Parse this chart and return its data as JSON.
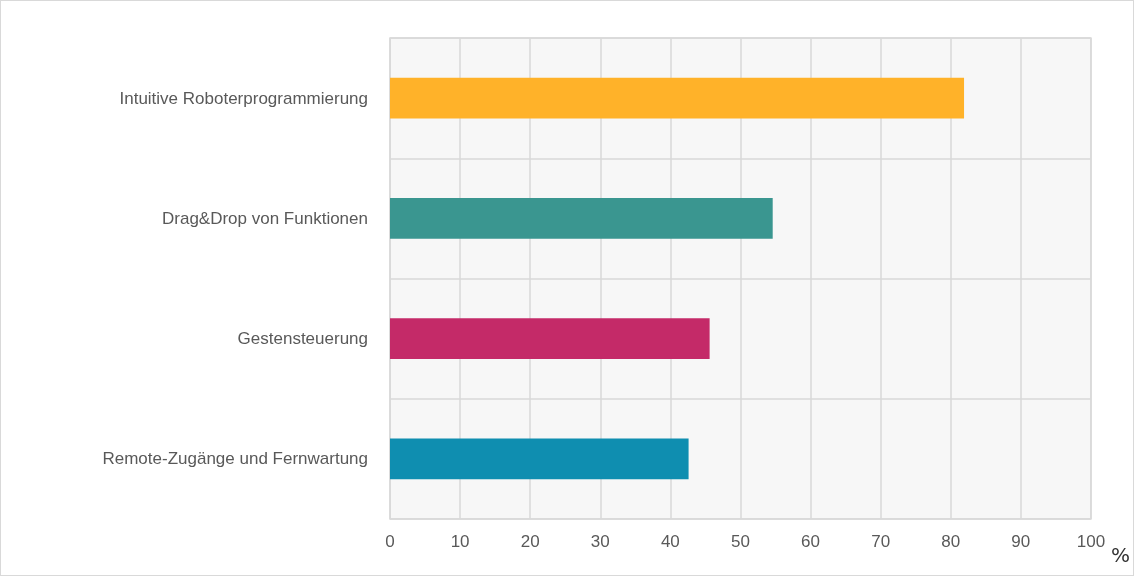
{
  "chart_data": {
    "type": "bar",
    "orientation": "horizontal",
    "xlabel": "%",
    "categories": [
      "Intuitive Roboterprogrammierung",
      "Drag&Drop von Funktionen",
      "Gestensteuerung",
      "Remote-Zugänge und Fernwartung"
    ],
    "values": [
      81.9,
      54.6,
      45.6,
      42.6
    ],
    "colors": [
      "#ffb229",
      "#3a9690",
      "#c42a68",
      "#0f8eb0"
    ],
    "xlim": [
      0,
      100
    ],
    "xticks": [
      0,
      10,
      20,
      30,
      40,
      50,
      60,
      70,
      80,
      90,
      100
    ],
    "grid": true
  }
}
